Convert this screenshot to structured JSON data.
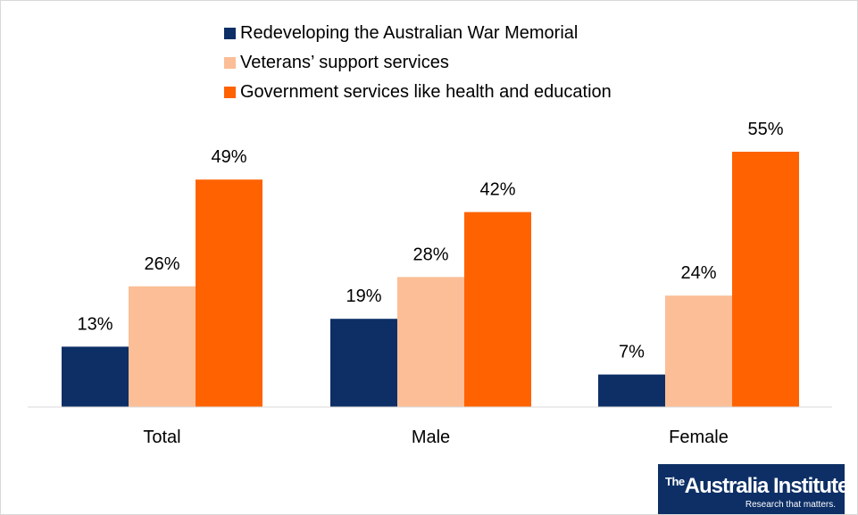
{
  "chart_data": {
    "type": "bar",
    "title": "",
    "xlabel": "",
    "ylabel": "",
    "ylim": [
      0,
      60
    ],
    "grid": false,
    "legend_position": "top-center",
    "categories": [
      "Total",
      "Male",
      "Female"
    ],
    "value_suffix": "%",
    "series": [
      {
        "name": "Redeveloping the Australian War Memorial",
        "color": "#0d2f66",
        "values": [
          13,
          19,
          7
        ]
      },
      {
        "name": "Veterans’ support services",
        "color": "#fbbe96",
        "values": [
          26,
          28,
          24
        ]
      },
      {
        "name": "Government services like health and education",
        "color": "#ff6200",
        "values": [
          49,
          42,
          55
        ]
      }
    ]
  },
  "logo": {
    "the": "The",
    "name": "Australia Institute",
    "tagline": "Research that matters."
  }
}
